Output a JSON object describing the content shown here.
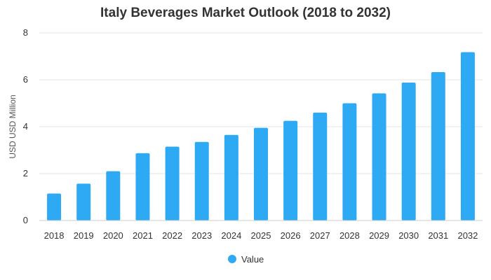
{
  "chart_data": {
    "type": "bar",
    "title": "Italy Beverages Market Outlook (2018 to 2032)",
    "xlabel": "",
    "ylabel": "USD USD Million",
    "categories": [
      "2018",
      "2019",
      "2020",
      "2021",
      "2022",
      "2023",
      "2024",
      "2025",
      "2026",
      "2027",
      "2028",
      "2029",
      "2030",
      "2031",
      "2032"
    ],
    "series": [
      {
        "name": "Value",
        "values": [
          1.15,
          1.57,
          2.1,
          2.87,
          3.15,
          3.35,
          3.65,
          3.95,
          4.25,
          4.6,
          5.0,
          5.42,
          5.88,
          6.33,
          7.18
        ]
      }
    ],
    "ylim": [
      0,
      8
    ],
    "yticks": [
      0,
      2,
      4,
      6,
      8
    ],
    "grid": true,
    "legend": "bottom-center",
    "color": "#2eaaf5"
  }
}
